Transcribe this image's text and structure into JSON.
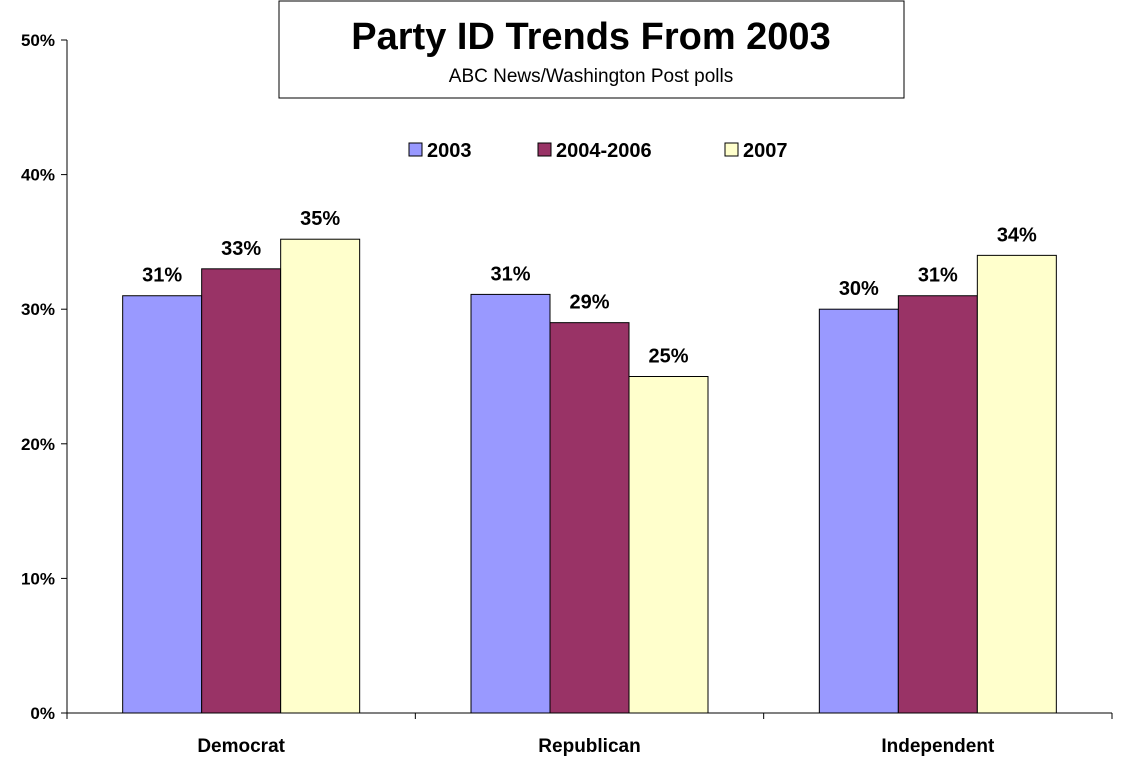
{
  "chart_data": {
    "type": "bar",
    "title": "Party ID Trends From 2003",
    "subtitle": "ABC News/Washington Post polls",
    "categories": [
      "Democrat",
      "Republican",
      "Independent"
    ],
    "series": [
      {
        "name": "2003",
        "values": [
          31,
          31.1,
          30
        ],
        "labels": [
          "31%",
          "31%",
          "30%"
        ],
        "color": "#9999ff"
      },
      {
        "name": "2004-2006",
        "values": [
          33,
          29,
          31
        ],
        "labels": [
          "33%",
          "29%",
          "31%"
        ],
        "color": "#993366"
      },
      {
        "name": "2007",
        "values": [
          35.2,
          25,
          34
        ],
        "labels": [
          "35%",
          "25%",
          "34%"
        ],
        "color": "#ffffcc"
      }
    ],
    "ylim": [
      0,
      50
    ],
    "yticks": [
      0,
      10,
      20,
      30,
      40,
      50
    ],
    "ytick_labels": [
      "0%",
      "10%",
      "20%",
      "30%",
      "40%",
      "50%"
    ],
    "xlabel": "",
    "ylabel": "",
    "grid": false,
    "legend": "top-center"
  }
}
